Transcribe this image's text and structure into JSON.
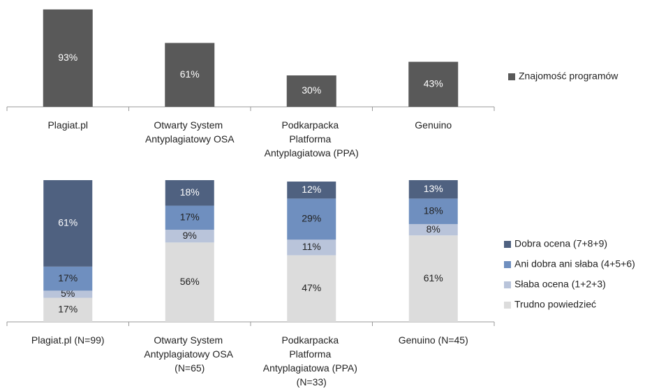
{
  "chart_data": [
    {
      "type": "bar",
      "categories": [
        "Plagiat.pl",
        "Otwarty System Antyplagiatowy OSA",
        "Podkarpacka Platforma Antyplagiatowa (PPA)",
        "Genuino"
      ],
      "series": [
        {
          "name": "Znajomość programów",
          "color": "#595959",
          "values": [
            93,
            61,
            30,
            43
          ],
          "value_labels": [
            "93%",
            "61%",
            "30%",
            "43%"
          ]
        }
      ],
      "ylim": [
        0,
        100
      ]
    },
    {
      "type": "stacked_bar",
      "categories": [
        "Plagiat.pl (N=99)",
        "Otwarty System Antyplagiatowy OSA (N=65)",
        "Podkarpacka Platforma Antyplagiatowa (PPA) (N=33)",
        "Genuino (N=45)"
      ],
      "series": [
        {
          "name": "Dobra ocena (7+8+9)",
          "color": "#4f6180",
          "values": [
            61,
            18,
            12,
            13
          ],
          "value_labels": [
            "61%",
            "18%",
            "12%",
            "13%"
          ]
        },
        {
          "name": "Ani dobra ani słaba (4+5+6)",
          "color": "#6f8fbf",
          "values": [
            17,
            17,
            29,
            18
          ],
          "value_labels": [
            "17%",
            "17%",
            "29%",
            "18%"
          ]
        },
        {
          "name": "Słaba ocena (1+2+3)",
          "color": "#b9c4da",
          "values": [
            5,
            9,
            11,
            8
          ],
          "value_labels": [
            "5%",
            "9%",
            "11%",
            "8%"
          ]
        },
        {
          "name": "Trudno powiedzieć",
          "color": "#dcdcdc",
          "values": [
            17,
            56,
            47,
            61
          ],
          "value_labels": [
            "17%",
            "56%",
            "47%",
            "61%"
          ]
        }
      ],
      "ylim": [
        0,
        100
      ]
    }
  ]
}
